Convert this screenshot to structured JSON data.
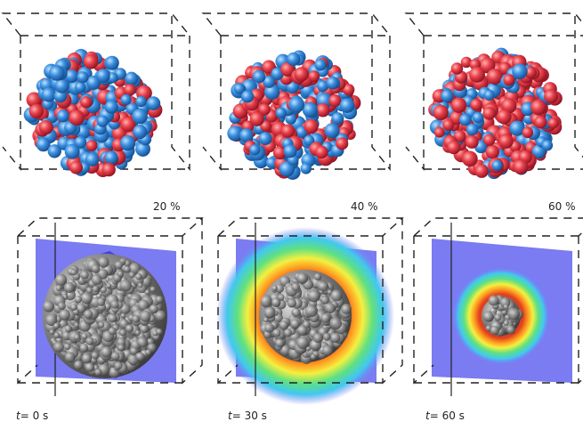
{
  "top_row": [
    {
      "label": "20 %"
    },
    {
      "label": "40 %"
    },
    {
      "label": "60 %"
    }
  ],
  "bottom_row": [
    {
      "variable": "t",
      "text": "= 0 s"
    },
    {
      "variable": "t",
      "text": "= 30 s"
    },
    {
      "variable": "t",
      "text": "= 60 s"
    }
  ]
}
